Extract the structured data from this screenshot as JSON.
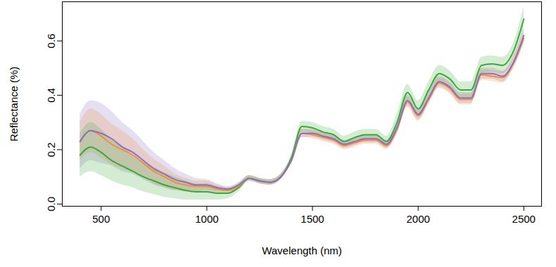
{
  "chart_data": {
    "type": "line",
    "x_label": "Wavelength (nm)",
    "y_label": "Reflectance (%)",
    "xlim": [
      316,
      2584
    ],
    "ylim": [
      -0.008,
      0.744
    ],
    "xticks": [
      500,
      1000,
      1500,
      2000,
      2500
    ],
    "yticks": [
      {
        "value": 0,
        "label": "0.0"
      },
      {
        "value": 0.2,
        "label": "0.2"
      },
      {
        "value": 0.4,
        "label": "0.4"
      },
      {
        "value": 0.6,
        "label": "0.6"
      }
    ],
    "x": [
      400,
      450,
      500,
      550,
      600,
      650,
      700,
      750,
      800,
      850,
      900,
      950,
      1000,
      1050,
      1100,
      1150,
      1200,
      1250,
      1300,
      1350,
      1400,
      1450,
      1500,
      1550,
      1600,
      1650,
      1700,
      1750,
      1800,
      1850,
      1900,
      1950,
      2000,
      2050,
      2100,
      2150,
      2200,
      2250,
      2300,
      2350,
      2400,
      2450,
      2500
    ],
    "series": [
      {
        "color": "#8a6fc4",
        "values": [
          0.23,
          0.27,
          0.26,
          0.24,
          0.21,
          0.19,
          0.16,
          0.13,
          0.11,
          0.09,
          0.08,
          0.07,
          0.07,
          0.06,
          0.055,
          0.07,
          0.095,
          0.085,
          0.08,
          0.1,
          0.16,
          0.26,
          0.26,
          0.25,
          0.24,
          0.22,
          0.23,
          0.24,
          0.24,
          0.22,
          0.28,
          0.38,
          0.33,
          0.39,
          0.45,
          0.43,
          0.39,
          0.39,
          0.48,
          0.48,
          0.47,
          0.52,
          0.62
        ],
        "lower": [
          0.13,
          0.16,
          0.15,
          0.14,
          0.12,
          0.11,
          0.09,
          0.07,
          0.06,
          0.05,
          0.05,
          0.045,
          0.05,
          0.045,
          0.045,
          0.06,
          0.085,
          0.075,
          0.07,
          0.09,
          0.15,
          0.245,
          0.245,
          0.235,
          0.225,
          0.205,
          0.215,
          0.225,
          0.225,
          0.205,
          0.26,
          0.36,
          0.31,
          0.37,
          0.43,
          0.41,
          0.37,
          0.37,
          0.46,
          0.46,
          0.45,
          0.5,
          0.595
        ],
        "upper": [
          0.33,
          0.38,
          0.37,
          0.34,
          0.3,
          0.27,
          0.23,
          0.19,
          0.16,
          0.13,
          0.11,
          0.095,
          0.09,
          0.075,
          0.065,
          0.08,
          0.105,
          0.095,
          0.09,
          0.11,
          0.17,
          0.275,
          0.275,
          0.265,
          0.255,
          0.235,
          0.245,
          0.255,
          0.255,
          0.235,
          0.3,
          0.4,
          0.35,
          0.41,
          0.47,
          0.45,
          0.41,
          0.41,
          0.5,
          0.5,
          0.49,
          0.54,
          0.645
        ]
      },
      {
        "color": "#f28e3c",
        "values": [
          0.23,
          0.27,
          0.25,
          0.22,
          0.2,
          0.18,
          0.15,
          0.12,
          0.1,
          0.08,
          0.07,
          0.065,
          0.065,
          0.055,
          0.05,
          0.065,
          0.095,
          0.085,
          0.08,
          0.1,
          0.16,
          0.26,
          0.255,
          0.245,
          0.235,
          0.215,
          0.225,
          0.235,
          0.235,
          0.215,
          0.275,
          0.375,
          0.325,
          0.385,
          0.445,
          0.425,
          0.385,
          0.385,
          0.475,
          0.47,
          0.465,
          0.515,
          0.61
        ],
        "lower": [
          0.16,
          0.19,
          0.17,
          0.145,
          0.13,
          0.12,
          0.1,
          0.075,
          0.06,
          0.05,
          0.045,
          0.045,
          0.045,
          0.04,
          0.04,
          0.055,
          0.085,
          0.075,
          0.07,
          0.09,
          0.15,
          0.245,
          0.24,
          0.23,
          0.22,
          0.2,
          0.21,
          0.22,
          0.22,
          0.2,
          0.255,
          0.355,
          0.305,
          0.365,
          0.425,
          0.405,
          0.365,
          0.365,
          0.455,
          0.45,
          0.445,
          0.495,
          0.585
        ],
        "upper": [
          0.3,
          0.35,
          0.33,
          0.295,
          0.27,
          0.24,
          0.2,
          0.165,
          0.14,
          0.11,
          0.095,
          0.085,
          0.085,
          0.07,
          0.06,
          0.075,
          0.105,
          0.095,
          0.09,
          0.11,
          0.17,
          0.275,
          0.27,
          0.26,
          0.25,
          0.23,
          0.24,
          0.25,
          0.25,
          0.23,
          0.295,
          0.395,
          0.345,
          0.405,
          0.465,
          0.445,
          0.405,
          0.405,
          0.495,
          0.49,
          0.485,
          0.535,
          0.635
        ]
      },
      {
        "color": "#3aa935",
        "values": [
          0.18,
          0.21,
          0.19,
          0.16,
          0.14,
          0.12,
          0.1,
          0.085,
          0.07,
          0.06,
          0.05,
          0.045,
          0.045,
          0.04,
          0.04,
          0.06,
          0.095,
          0.085,
          0.08,
          0.1,
          0.17,
          0.285,
          0.28,
          0.265,
          0.255,
          0.23,
          0.245,
          0.255,
          0.255,
          0.23,
          0.3,
          0.41,
          0.35,
          0.42,
          0.48,
          0.46,
          0.42,
          0.42,
          0.51,
          0.515,
          0.51,
          0.56,
          0.68
        ],
        "lower": [
          0.1,
          0.12,
          0.105,
          0.085,
          0.07,
          0.06,
          0.045,
          0.035,
          0.025,
          0.02,
          0.015,
          0.015,
          0.015,
          0.015,
          0.02,
          0.045,
          0.085,
          0.075,
          0.07,
          0.09,
          0.16,
          0.265,
          0.26,
          0.245,
          0.235,
          0.21,
          0.225,
          0.235,
          0.235,
          0.21,
          0.27,
          0.38,
          0.32,
          0.39,
          0.45,
          0.43,
          0.39,
          0.39,
          0.48,
          0.485,
          0.48,
          0.53,
          0.635
        ],
        "upper": [
          0.26,
          0.3,
          0.275,
          0.235,
          0.21,
          0.18,
          0.155,
          0.135,
          0.115,
          0.1,
          0.085,
          0.075,
          0.075,
          0.065,
          0.06,
          0.075,
          0.105,
          0.095,
          0.09,
          0.11,
          0.18,
          0.305,
          0.3,
          0.285,
          0.275,
          0.25,
          0.265,
          0.275,
          0.275,
          0.25,
          0.33,
          0.44,
          0.38,
          0.45,
          0.51,
          0.49,
          0.45,
          0.45,
          0.54,
          0.545,
          0.54,
          0.59,
          0.725
        ]
      }
    ]
  }
}
